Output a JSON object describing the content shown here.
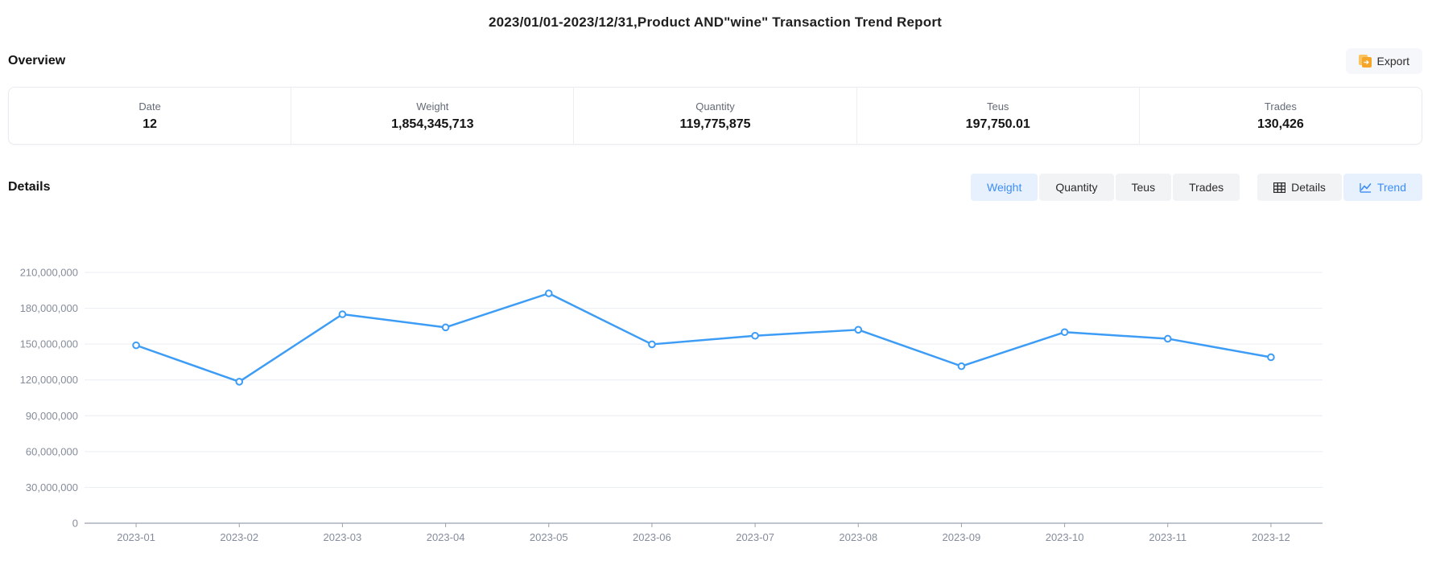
{
  "page_title": "2023/01/01-2023/12/31,Product AND\"wine\" Transaction Trend Report",
  "overview": {
    "heading": "Overview",
    "export_label": "Export",
    "export_icon": "export-document-icon",
    "stats": [
      {
        "label": "Date",
        "value": "12"
      },
      {
        "label": "Weight",
        "value": "1,854,345,713"
      },
      {
        "label": "Quantity",
        "value": "119,775,875"
      },
      {
        "label": "Teus",
        "value": "197,750.01"
      },
      {
        "label": "Trades",
        "value": "130,426"
      }
    ]
  },
  "details": {
    "heading": "Details",
    "metric_tabs": [
      {
        "label": "Weight",
        "active": true
      },
      {
        "label": "Quantity",
        "active": false
      },
      {
        "label": "Teus",
        "active": false
      },
      {
        "label": "Trades",
        "active": false
      }
    ],
    "view_tabs": [
      {
        "label": "Details",
        "icon": "table-icon",
        "active": false
      },
      {
        "label": "Trend",
        "icon": "line-chart-icon",
        "active": true
      }
    ]
  },
  "colors": {
    "line": "#3d9cf5",
    "active_tab_bg": "#e7f1fd",
    "active_tab_text": "#3c8df6",
    "inactive_tab_bg": "#f2f3f5",
    "grid_line": "#e9edf3",
    "axis_line": "#9aa1ad",
    "axis_text": "#858c9b",
    "export_icon_orange": "#f5a62a"
  },
  "chart_data": {
    "type": "line",
    "title": "",
    "xlabel": "",
    "ylabel": "",
    "categories": [
      "2023-01",
      "2023-02",
      "2023-03",
      "2023-04",
      "2023-05",
      "2023-06",
      "2023-07",
      "2023-08",
      "2023-09",
      "2023-10",
      "2023-11",
      "2023-12"
    ],
    "series": [
      {
        "name": "Weight",
        "values": [
          149000000,
          118500000,
          175000000,
          164000000,
          192500000,
          149800000,
          157000000,
          162000000,
          131500000,
          160000000,
          154500000,
          139000000
        ]
      }
    ],
    "ylim": [
      0,
      210000000
    ],
    "ytick_step": 30000000,
    "grid": true,
    "legend_position": "none",
    "point_style": "hollow-circle"
  }
}
